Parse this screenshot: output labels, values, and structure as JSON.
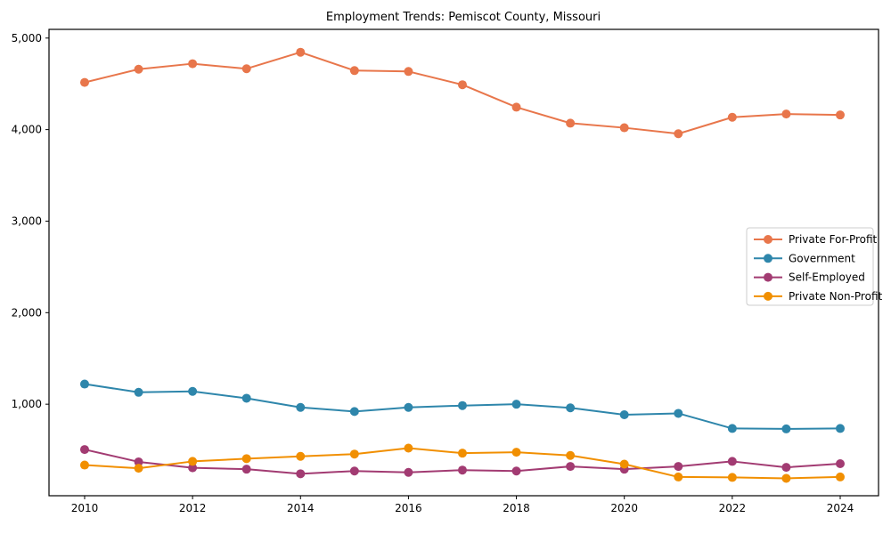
{
  "page": {
    "background": "#ffffff"
  },
  "chart_data": {
    "type": "line",
    "title": "Employment Trends: Pemiscot County, Missouri",
    "xlabel": "",
    "ylabel": "",
    "x": [
      2010,
      2011,
      2012,
      2013,
      2014,
      2015,
      2016,
      2017,
      2018,
      2019,
      2020,
      2021,
      2022,
      2023,
      2024
    ],
    "x_ticks": [
      2010,
      2012,
      2014,
      2016,
      2018,
      2020,
      2022,
      2024
    ],
    "y_ticks": [
      1000,
      2000,
      3000,
      4000,
      5000
    ],
    "y_tick_labels": [
      "1,000",
      "2,000",
      "3,000",
      "4,000",
      "5,000"
    ],
    "xlim": [
      2009.34,
      2024.71
    ],
    "ylim": [
      0,
      5095
    ],
    "grid": false,
    "axis_color": "#000000",
    "marker": "circle",
    "legend": {
      "position": "center-right",
      "background": "#ffffff",
      "border_color": "#cccccc"
    },
    "series": [
      {
        "name": "Private For-Profit",
        "color": "#E8764B",
        "values": [
          4515,
          4660,
          4720,
          4665,
          4845,
          4645,
          4635,
          4490,
          4245,
          4070,
          4020,
          3955,
          4135,
          4170,
          4160
        ]
      },
      {
        "name": "Government",
        "color": "#2E86AB",
        "values": [
          1220,
          1130,
          1140,
          1065,
          965,
          920,
          965,
          985,
          1000,
          960,
          885,
          900,
          735,
          730,
          735
        ]
      },
      {
        "name": "Self-Employed",
        "color": "#A23B72",
        "values": [
          505,
          370,
          305,
          290,
          240,
          270,
          255,
          280,
          270,
          320,
          290,
          320,
          375,
          310,
          350
        ]
      },
      {
        "name": "Private Non-Profit",
        "color": "#F18F01",
        "values": [
          335,
          300,
          375,
          405,
          430,
          455,
          520,
          465,
          475,
          440,
          345,
          205,
          200,
          190,
          205
        ]
      }
    ]
  }
}
